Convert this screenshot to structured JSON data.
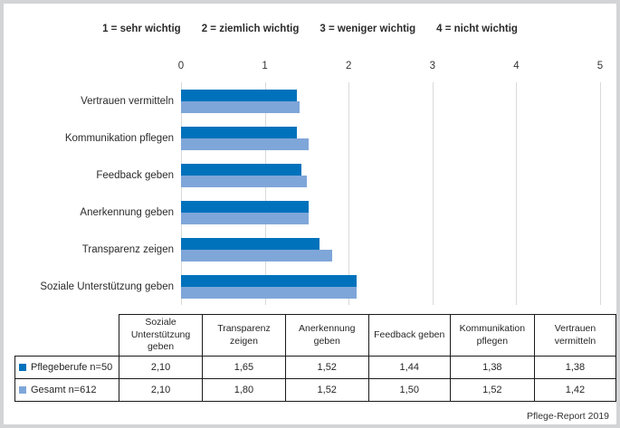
{
  "meta": {
    "source_label": "Pflege-Report 2019"
  },
  "scale_legend": [
    "1 = sehr wichtig",
    "2 = ziemlich wichtig",
    "3 = weniger wichtig",
    "4 = nicht wichtig"
  ],
  "colors": {
    "series1": "#0072bc",
    "series2": "#7fa6d9",
    "gridline": "#d9d9d9",
    "frame": "#d3d4d6",
    "table_border": "#1a1a1a"
  },
  "chart_data": {
    "type": "bar",
    "orientation": "horizontal",
    "categories": [
      "Vertrauen vermitteln",
      "Kommunikation pflegen",
      "Feedback geben",
      "Anerkennung geben",
      "Transparenz zeigen",
      "Soziale Unterstützung geben"
    ],
    "series": [
      {
        "name": "Pflegeberufe n=50",
        "color_key": "series1",
        "values": [
          1.38,
          1.38,
          1.44,
          1.52,
          1.65,
          2.1
        ]
      },
      {
        "name": "Gesamt n=612",
        "color_key": "series2",
        "values": [
          1.42,
          1.52,
          1.5,
          1.52,
          1.8,
          2.1
        ]
      }
    ],
    "xlim": [
      0,
      5
    ],
    "xticks": [
      0,
      1,
      2,
      3,
      4,
      5
    ],
    "grid": true,
    "legend_position": "table-rows"
  },
  "table": {
    "columns": [
      "Soziale Unterstützung geben",
      "Transparenz zeigen",
      "Anerkennung geben",
      "Feedback geben",
      "Kommunikation pflegen",
      "Vertrauen vermitteln"
    ],
    "rows": [
      {
        "label": "Pflegeberufe n=50",
        "marker_color_key": "series1",
        "values": [
          "2,10",
          "1,65",
          "1,52",
          "1,44",
          "1,38",
          "1,38"
        ]
      },
      {
        "label": "Gesamt n=612",
        "marker_color_key": "series2",
        "values": [
          "2,10",
          "1,80",
          "1,52",
          "1,50",
          "1,52",
          "1,42"
        ]
      }
    ]
  }
}
